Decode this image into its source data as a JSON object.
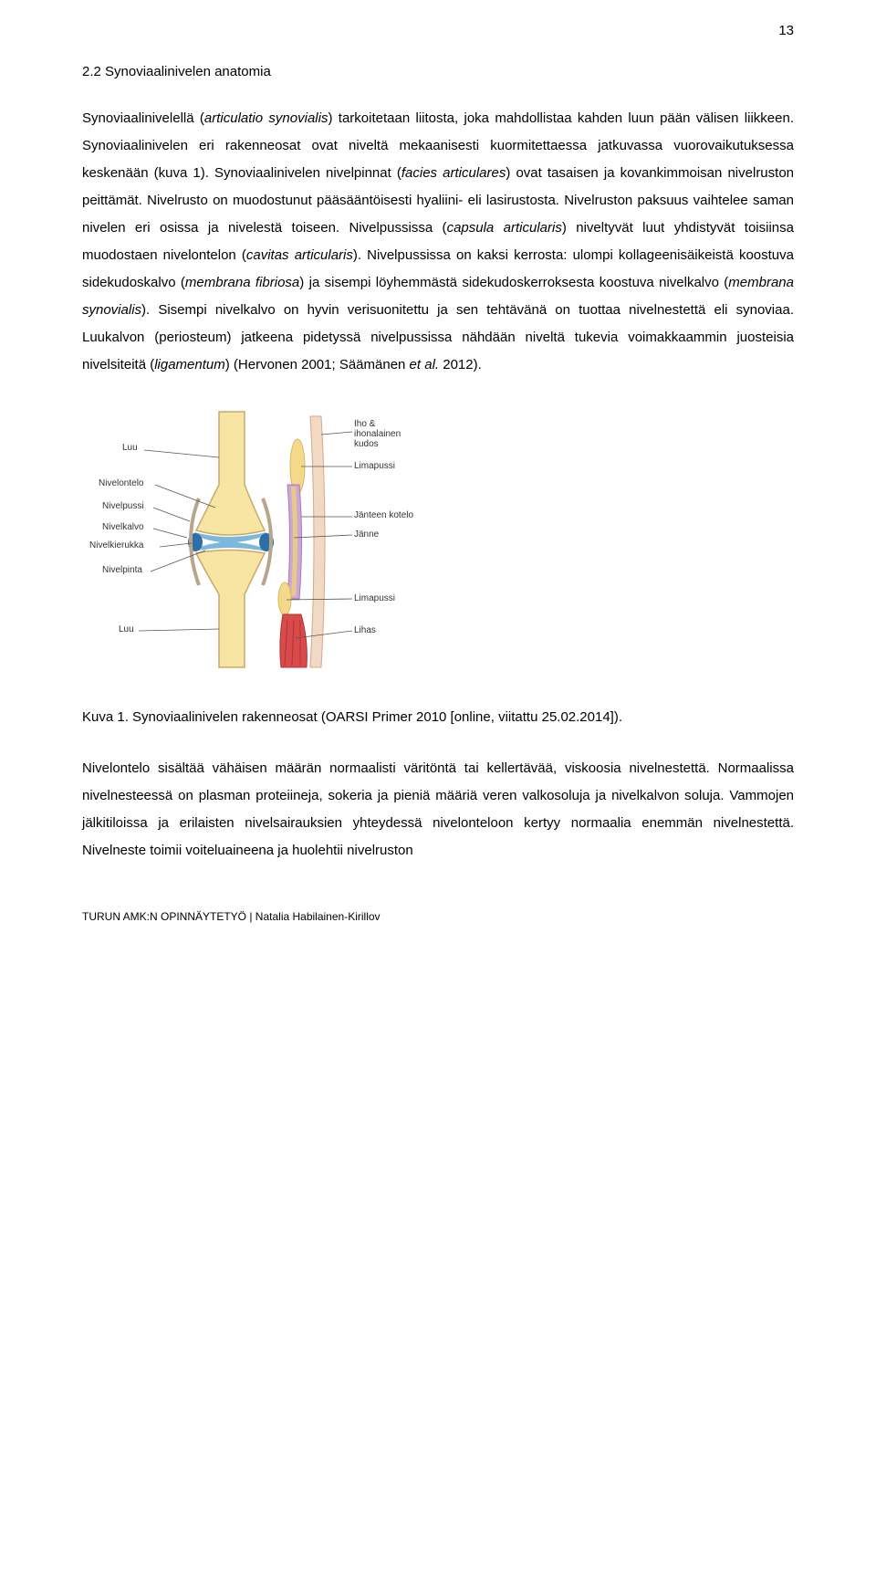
{
  "page_number": "13",
  "section_title": "2.2 Synoviaalinivelen anatomia",
  "paragraph1": "Synoviaalinivelellä (articulatio synovialis) tarkoitetaan liitosta, joka mahdollistaa kahden luun pään välisen liikkeen. Synoviaalinivelen eri rakenneosat ovat niveltä mekaanisesti kuormitettaessa jatkuvassa vuorovaikutuksessa keskenään (kuva 1). Synoviaalinivelen nivelpinnat (facies articulares) ovat tasaisen ja kovankimmoisan nivelruston peittämät. Nivelrusto on muodostunut pääsääntöisesti hyaliini- eli lasirustosta. Nivelruston paksuus vaihtelee saman nivelen eri osissa ja nivelestä toiseen. Nivelpussissa (capsula articularis) niveltyvät luut yhdistyvät toisiinsa muodostaen nivelontelon (cavitas articularis). Nivelpussissa on kaksi kerrosta: ulompi kollageenisäikeistä koostuva sidekudoskalvo (membrana fibriosa) ja sisempi löyhemmästä sidekudoskerroksesta koostuva nivelkalvo (membrana synovialis). Sisempi nivelkalvo on hyvin verisuonitettu ja sen tehtävänä on tuottaa nivelnestettä eli synoviaa. Luukalvon (periosteum) jatkeena pidetyssä nivelpussissa nähdään niveltä tukevia voimakkaammin juosteisia nivelsiteitä (ligamentum) (Hervonen 2001; Säämänen et al. 2012).",
  "caption": "Kuva 1. Synoviaalinivelen rakenneosat (OARSI Primer 2010 [online, viitattu 25.02.2014]).",
  "paragraph2": "Nivelontelo sisältää vähäisen määrän normaalisti väritöntä tai kellertävää, viskoosia nivelnestettä. Normaalissa nivelnesteessä on plasman proteiineja, sokeria ja pieniä määriä veren valkosoluja ja nivelkalvon soluja. Vammojen jälkitiloissa ja erilaisten nivelsairauksien yhteydessä nivelonteloon kertyy normaalia enemmän nivelnestettä. Nivelneste toimii voiteluaineena ja huolehtii nivelruston",
  "footer": "TURUN AMK:N OPINNÄYTETYÖ | Natalia Habilainen-Kirillov",
  "diagram": {
    "left_labels": [
      "Luu",
      "Nivelontelo",
      "Nivelpussi",
      "Nivelkalvo",
      "Nivelkierukka",
      "Nivelpinta",
      "Luu"
    ],
    "right_labels": [
      "Iho & ihonalainen kudos",
      "Limapussi",
      "Jänteen kotelo",
      "Jänne",
      "Limapussi",
      "Lihas"
    ],
    "bone_color": "#f7e6a3",
    "cartilage_color": "#7db8da",
    "meniscus_color": "#2a6fa8",
    "capsule_outer": "#b8a58c",
    "skin_color": "#f2d9c4",
    "tendon_sheath": "#cba8d4",
    "tendon_color": "#e8c988",
    "muscle_color": "#d94a4a",
    "bursa_color": "#f5d88a",
    "background": "#ffffff"
  }
}
